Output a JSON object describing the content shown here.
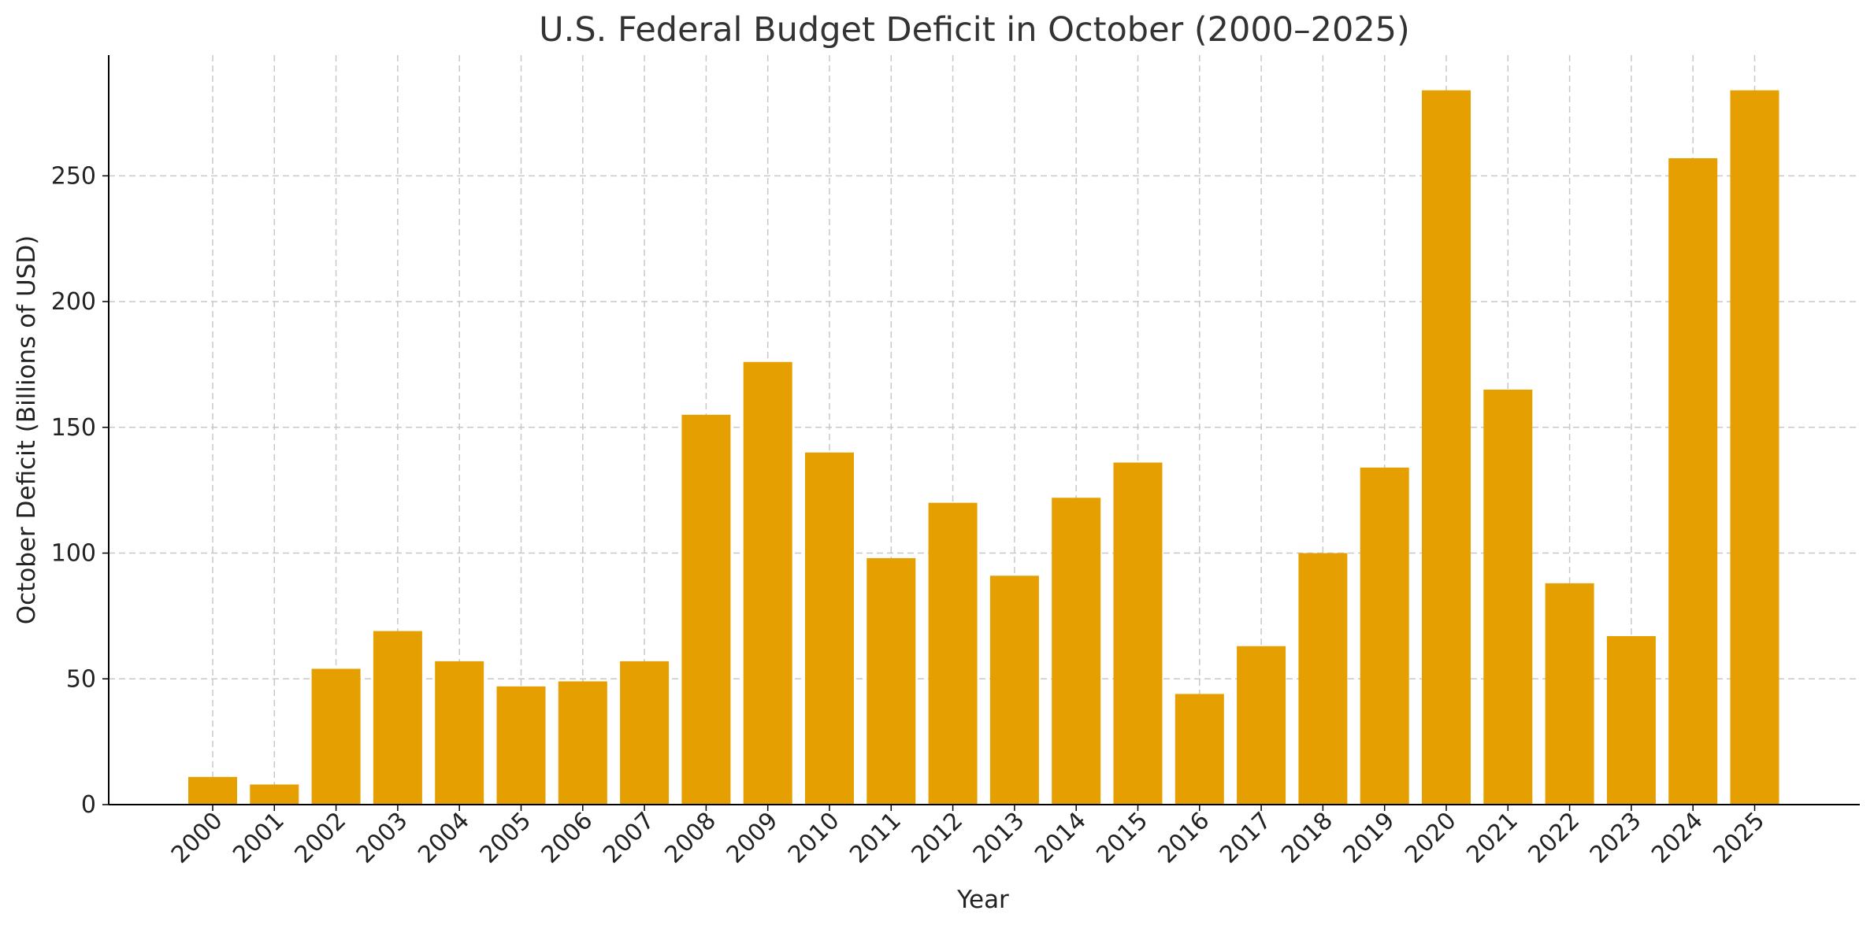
{
  "chart_data": {
    "type": "bar",
    "title": "U.S. Federal Budget Deficit in October (2000–2025)",
    "xlabel": "Year",
    "ylabel": "October Deficit (Billions of USD)",
    "categories": [
      "2000",
      "2001",
      "2002",
      "2003",
      "2004",
      "2005",
      "2006",
      "2007",
      "2008",
      "2009",
      "2010",
      "2011",
      "2012",
      "2013",
      "2014",
      "2015",
      "2016",
      "2017",
      "2018",
      "2019",
      "2020",
      "2021",
      "2022",
      "2023",
      "2024",
      "2025"
    ],
    "values": [
      11,
      8,
      54,
      69,
      57,
      47,
      49,
      57,
      155,
      176,
      140,
      98,
      120,
      91,
      122,
      136,
      44,
      63,
      100,
      134,
      284,
      165,
      88,
      67,
      257,
      284
    ],
    "ylim": [
      0,
      298
    ],
    "yticks": [
      "0",
      "50",
      "100",
      "150",
      "200",
      "250"
    ],
    "grid": true,
    "bar_color": "#E69F00"
  }
}
